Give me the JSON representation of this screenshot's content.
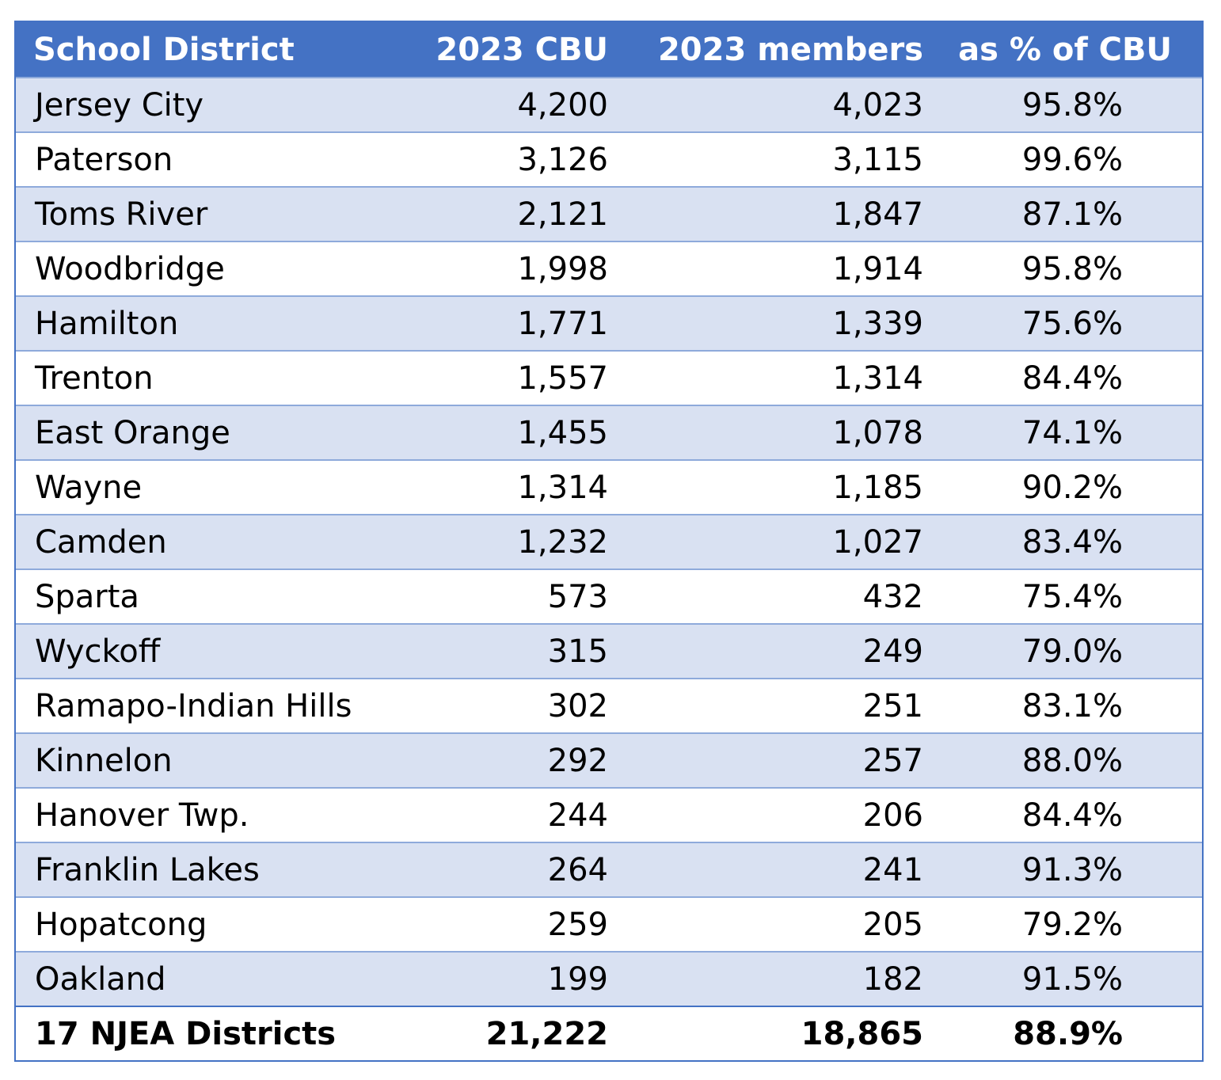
{
  "table": {
    "headers": [
      "School District",
      "2023 CBU",
      "2023 members",
      "as % of CBU"
    ],
    "rows": [
      [
        "Jersey City",
        "4,200",
        "4,023",
        "95.8%"
      ],
      [
        "Paterson",
        "3,126",
        "3,115",
        "99.6%"
      ],
      [
        "Toms River",
        "2,121",
        "1,847",
        "87.1%"
      ],
      [
        "Woodbridge",
        "1,998",
        "1,914",
        "95.8%"
      ],
      [
        "Hamilton",
        "1,771",
        "1,339",
        "75.6%"
      ],
      [
        "Trenton",
        "1,557",
        "1,314",
        "84.4%"
      ],
      [
        "East Orange",
        "1,455",
        "1,078",
        "74.1%"
      ],
      [
        "Wayne",
        "1,314",
        "1,185",
        "90.2%"
      ],
      [
        "Camden",
        "1,232",
        "1,027",
        "83.4%"
      ],
      [
        "Sparta",
        "573",
        "432",
        "75.4%"
      ],
      [
        "Wyckoff",
        "315",
        "249",
        "79.0%"
      ],
      [
        "Ramapo-Indian Hills",
        "302",
        "251",
        "83.1%"
      ],
      [
        "Kinnelon",
        "292",
        "257",
        "88.0%"
      ],
      [
        "Hanover Twp.",
        "244",
        "206",
        "84.4%"
      ],
      [
        "Franklin Lakes",
        "264",
        "241",
        "91.3%"
      ],
      [
        "Hopatcong",
        "259",
        "205",
        "79.2%"
      ],
      [
        "Oakland",
        "199",
        "182",
        "91.5%"
      ]
    ],
    "total": [
      "17 NJEA Districts",
      "21,222",
      "18,865",
      "88.9%"
    ]
  },
  "colors": {
    "header_bg": "#4472c4",
    "band_bg": "#d9e1f2",
    "row_border": "#8eaadb"
  }
}
